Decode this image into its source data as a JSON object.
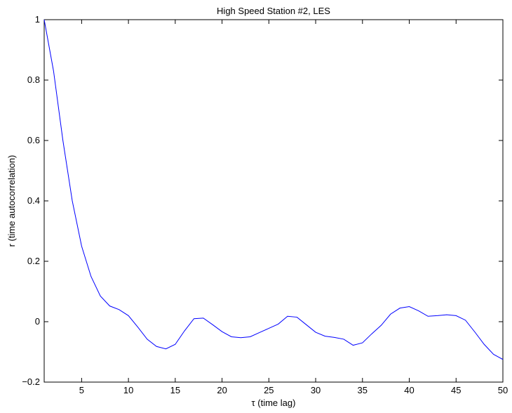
{
  "chart_data": {
    "type": "line",
    "title": "High Speed Station #2, LES",
    "xlabel": "τ (time lag)",
    "ylabel": "r (time autocorrelation)",
    "xlim": [
      1,
      50
    ],
    "ylim": [
      -0.2,
      1
    ],
    "xticks": [
      5,
      10,
      15,
      20,
      25,
      30,
      35,
      40,
      45,
      50
    ],
    "xtick_labels": [
      "5",
      "10",
      "15",
      "20",
      "25",
      "30",
      "35",
      "40",
      "45",
      "50"
    ],
    "yticks": [
      -0.2,
      0,
      0.2,
      0.4,
      0.6,
      0.8,
      1
    ],
    "ytick_labels": [
      "−0.2",
      "0",
      "0.2",
      "0.4",
      "0.6",
      "0.8",
      "1"
    ],
    "grid": false,
    "line_color": "#0000ff",
    "series": [
      {
        "x": [
          1,
          2,
          3,
          4,
          5,
          6,
          7,
          8,
          9,
          10,
          11,
          12,
          13,
          14,
          15,
          16,
          17,
          18,
          19,
          20,
          21,
          22,
          23,
          24,
          25,
          26,
          27,
          28,
          29,
          30,
          31,
          32,
          33,
          34,
          35,
          36,
          37,
          38,
          39,
          40,
          41,
          42,
          43,
          44,
          45,
          46,
          47,
          48,
          49,
          50
        ],
        "values": [
          1.0,
          0.83,
          0.6,
          0.4,
          0.25,
          0.15,
          0.085,
          0.052,
          0.04,
          0.02,
          -0.018,
          -0.058,
          -0.082,
          -0.09,
          -0.075,
          -0.03,
          0.01,
          0.012,
          -0.01,
          -0.033,
          -0.05,
          -0.053,
          -0.05,
          -0.036,
          -0.022,
          -0.008,
          0.018,
          0.015,
          -0.01,
          -0.035,
          -0.048,
          -0.052,
          -0.058,
          -0.078,
          -0.07,
          -0.04,
          -0.012,
          0.025,
          0.045,
          0.05,
          0.036,
          0.018,
          0.02,
          0.023,
          0.02,
          0.005,
          -0.034,
          -0.075,
          -0.108,
          -0.125
        ]
      }
    ]
  }
}
